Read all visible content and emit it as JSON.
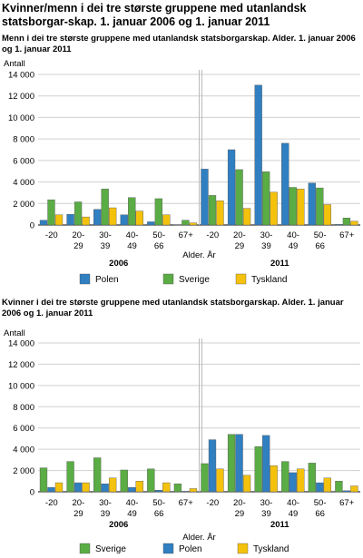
{
  "page_title": "Kvinner/menn i dei tre største gruppene med utanlandsk statsborgar-skap. 1. januar 2006 og 1. januar 2011",
  "colors": {
    "Polen": "#2f7fc1",
    "Sverige": "#5aac44",
    "Tyskland": "#f4c20d"
  },
  "chart_data": [
    {
      "type": "bar",
      "title": "Menn i dei tre største gruppene med utanlandsk statsborgarskap. Alder. 1. januar 2006 og 1. januar 2011",
      "ylabel": "Antall",
      "xlabel": "Alder. År",
      "ylim": [
        0,
        14000
      ],
      "yticks": [
        "0",
        "2 000",
        "4 000",
        "6 000",
        "8 000",
        "10 000",
        "12 000",
        "14 000"
      ],
      "grid": true,
      "groups": [
        "2006",
        "2011"
      ],
      "categories": [
        "-20",
        "20-\n29",
        "30-\n39",
        "40-\n49",
        "50-\n66",
        "67+"
      ],
      "series": [
        {
          "name": "Polen",
          "values": [
            [
              450,
              1000,
              1450,
              950,
              300,
              40
            ],
            [
              5200,
              7000,
              13000,
              7600,
              3900,
              60
            ]
          ]
        },
        {
          "name": "Sverige",
          "values": [
            [
              2350,
              2150,
              3350,
              2550,
              2450,
              450
            ],
            [
              2750,
              5150,
              4950,
              3500,
              3450,
              650
            ]
          ]
        },
        {
          "name": "Tyskland",
          "values": [
            [
              950,
              750,
              1600,
              1300,
              950,
              200
            ],
            [
              2250,
              1550,
              3050,
              3350,
              1900,
              350
            ]
          ]
        }
      ],
      "legend": {
        "placement": "bottom",
        "order": [
          "Polen",
          "Sverige",
          "Tyskland"
        ]
      }
    },
    {
      "type": "bar",
      "title": "Kvinner i dei tre største gruppene med utanlandsk statsborgarskap. Alder. 1. januar 2006 og 1. januar 2011",
      "ylabel": "Antall",
      "xlabel": "Alder. År",
      "ylim": [
        0,
        14000
      ],
      "yticks": [
        "0",
        "2 000",
        "4 000",
        "6 000",
        "8 000",
        "10 000",
        "12 000",
        "14 000"
      ],
      "grid": true,
      "groups": [
        "2006",
        "2011"
      ],
      "categories": [
        "-20",
        "20-\n29",
        "30-\n39",
        "40-\n49",
        "50-\n66",
        "67+"
      ],
      "series": [
        {
          "name": "Sverige",
          "values": [
            [
              2250,
              2850,
              3200,
              2050,
              2150,
              750
            ],
            [
              2650,
              5400,
              4250,
              2850,
              2700,
              1000
            ]
          ]
        },
        {
          "name": "Polen",
          "values": [
            [
              400,
              850,
              750,
              400,
              150,
              50
            ],
            [
              4900,
              5400,
              5300,
              1800,
              850,
              100
            ]
          ]
        },
        {
          "name": "Tyskland",
          "values": [
            [
              850,
              850,
              1300,
              1000,
              850,
              300
            ],
            [
              2150,
              1550,
              2450,
              2150,
              1300,
              550
            ]
          ]
        }
      ],
      "legend": {
        "placement": "bottom",
        "order": [
          "Sverige",
          "Polen",
          "Tyskland"
        ]
      }
    }
  ]
}
